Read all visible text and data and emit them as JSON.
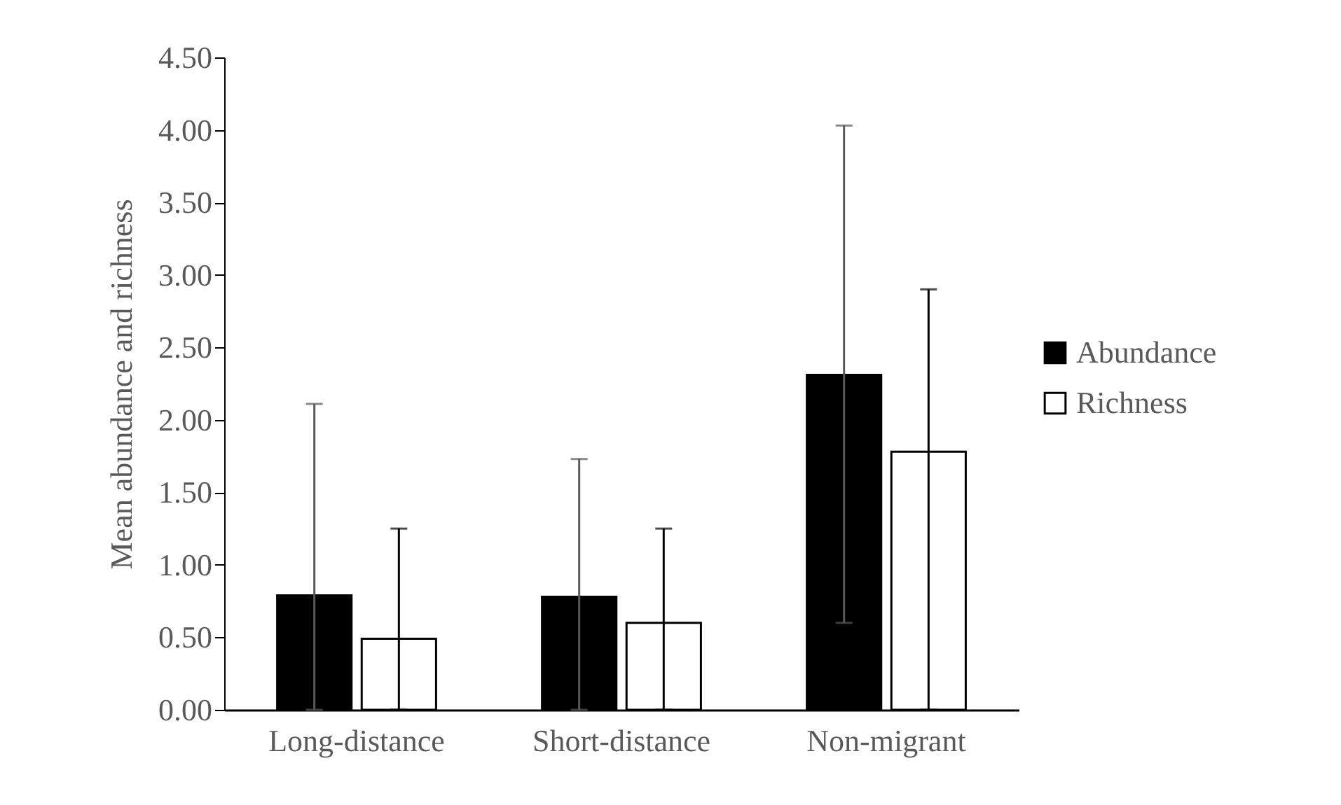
{
  "chart_data": {
    "type": "bar",
    "ylabel": "Mean abundance and richness",
    "categories": [
      "Long-distance",
      "Short-distance",
      "Non-migrant"
    ],
    "series": [
      {
        "name": "Abundance",
        "color": "#000000",
        "values": [
          0.79,
          0.78,
          2.31
        ],
        "errors": [
          [
            0,
            2.11
          ],
          [
            0,
            1.73
          ],
          [
            0.6,
            4.03
          ]
        ]
      },
      {
        "name": "Richness",
        "color": "#ffffff",
        "values": [
          0.49,
          0.6,
          1.78
        ],
        "errors": [
          [
            0,
            1.25
          ],
          [
            0,
            1.25
          ],
          [
            0,
            2.9
          ]
        ]
      }
    ],
    "ylim": [
      0,
      4.5
    ],
    "yticks": [
      {
        "value": 0,
        "label": "0.00"
      },
      {
        "value": 0.5,
        "label": "0.50"
      },
      {
        "value": 1,
        "label": "1.00"
      },
      {
        "value": 1.5,
        "label": "1.50"
      },
      {
        "value": 2,
        "label": "2.00"
      },
      {
        "value": 2.5,
        "label": "2.50"
      },
      {
        "value": 3,
        "label": "3.00"
      },
      {
        "value": 3.5,
        "label": "3.50"
      },
      {
        "value": 4,
        "label": "4.00"
      },
      {
        "value": 4.5,
        "label": "4.50"
      }
    ],
    "grid": false,
    "legend": "right"
  }
}
